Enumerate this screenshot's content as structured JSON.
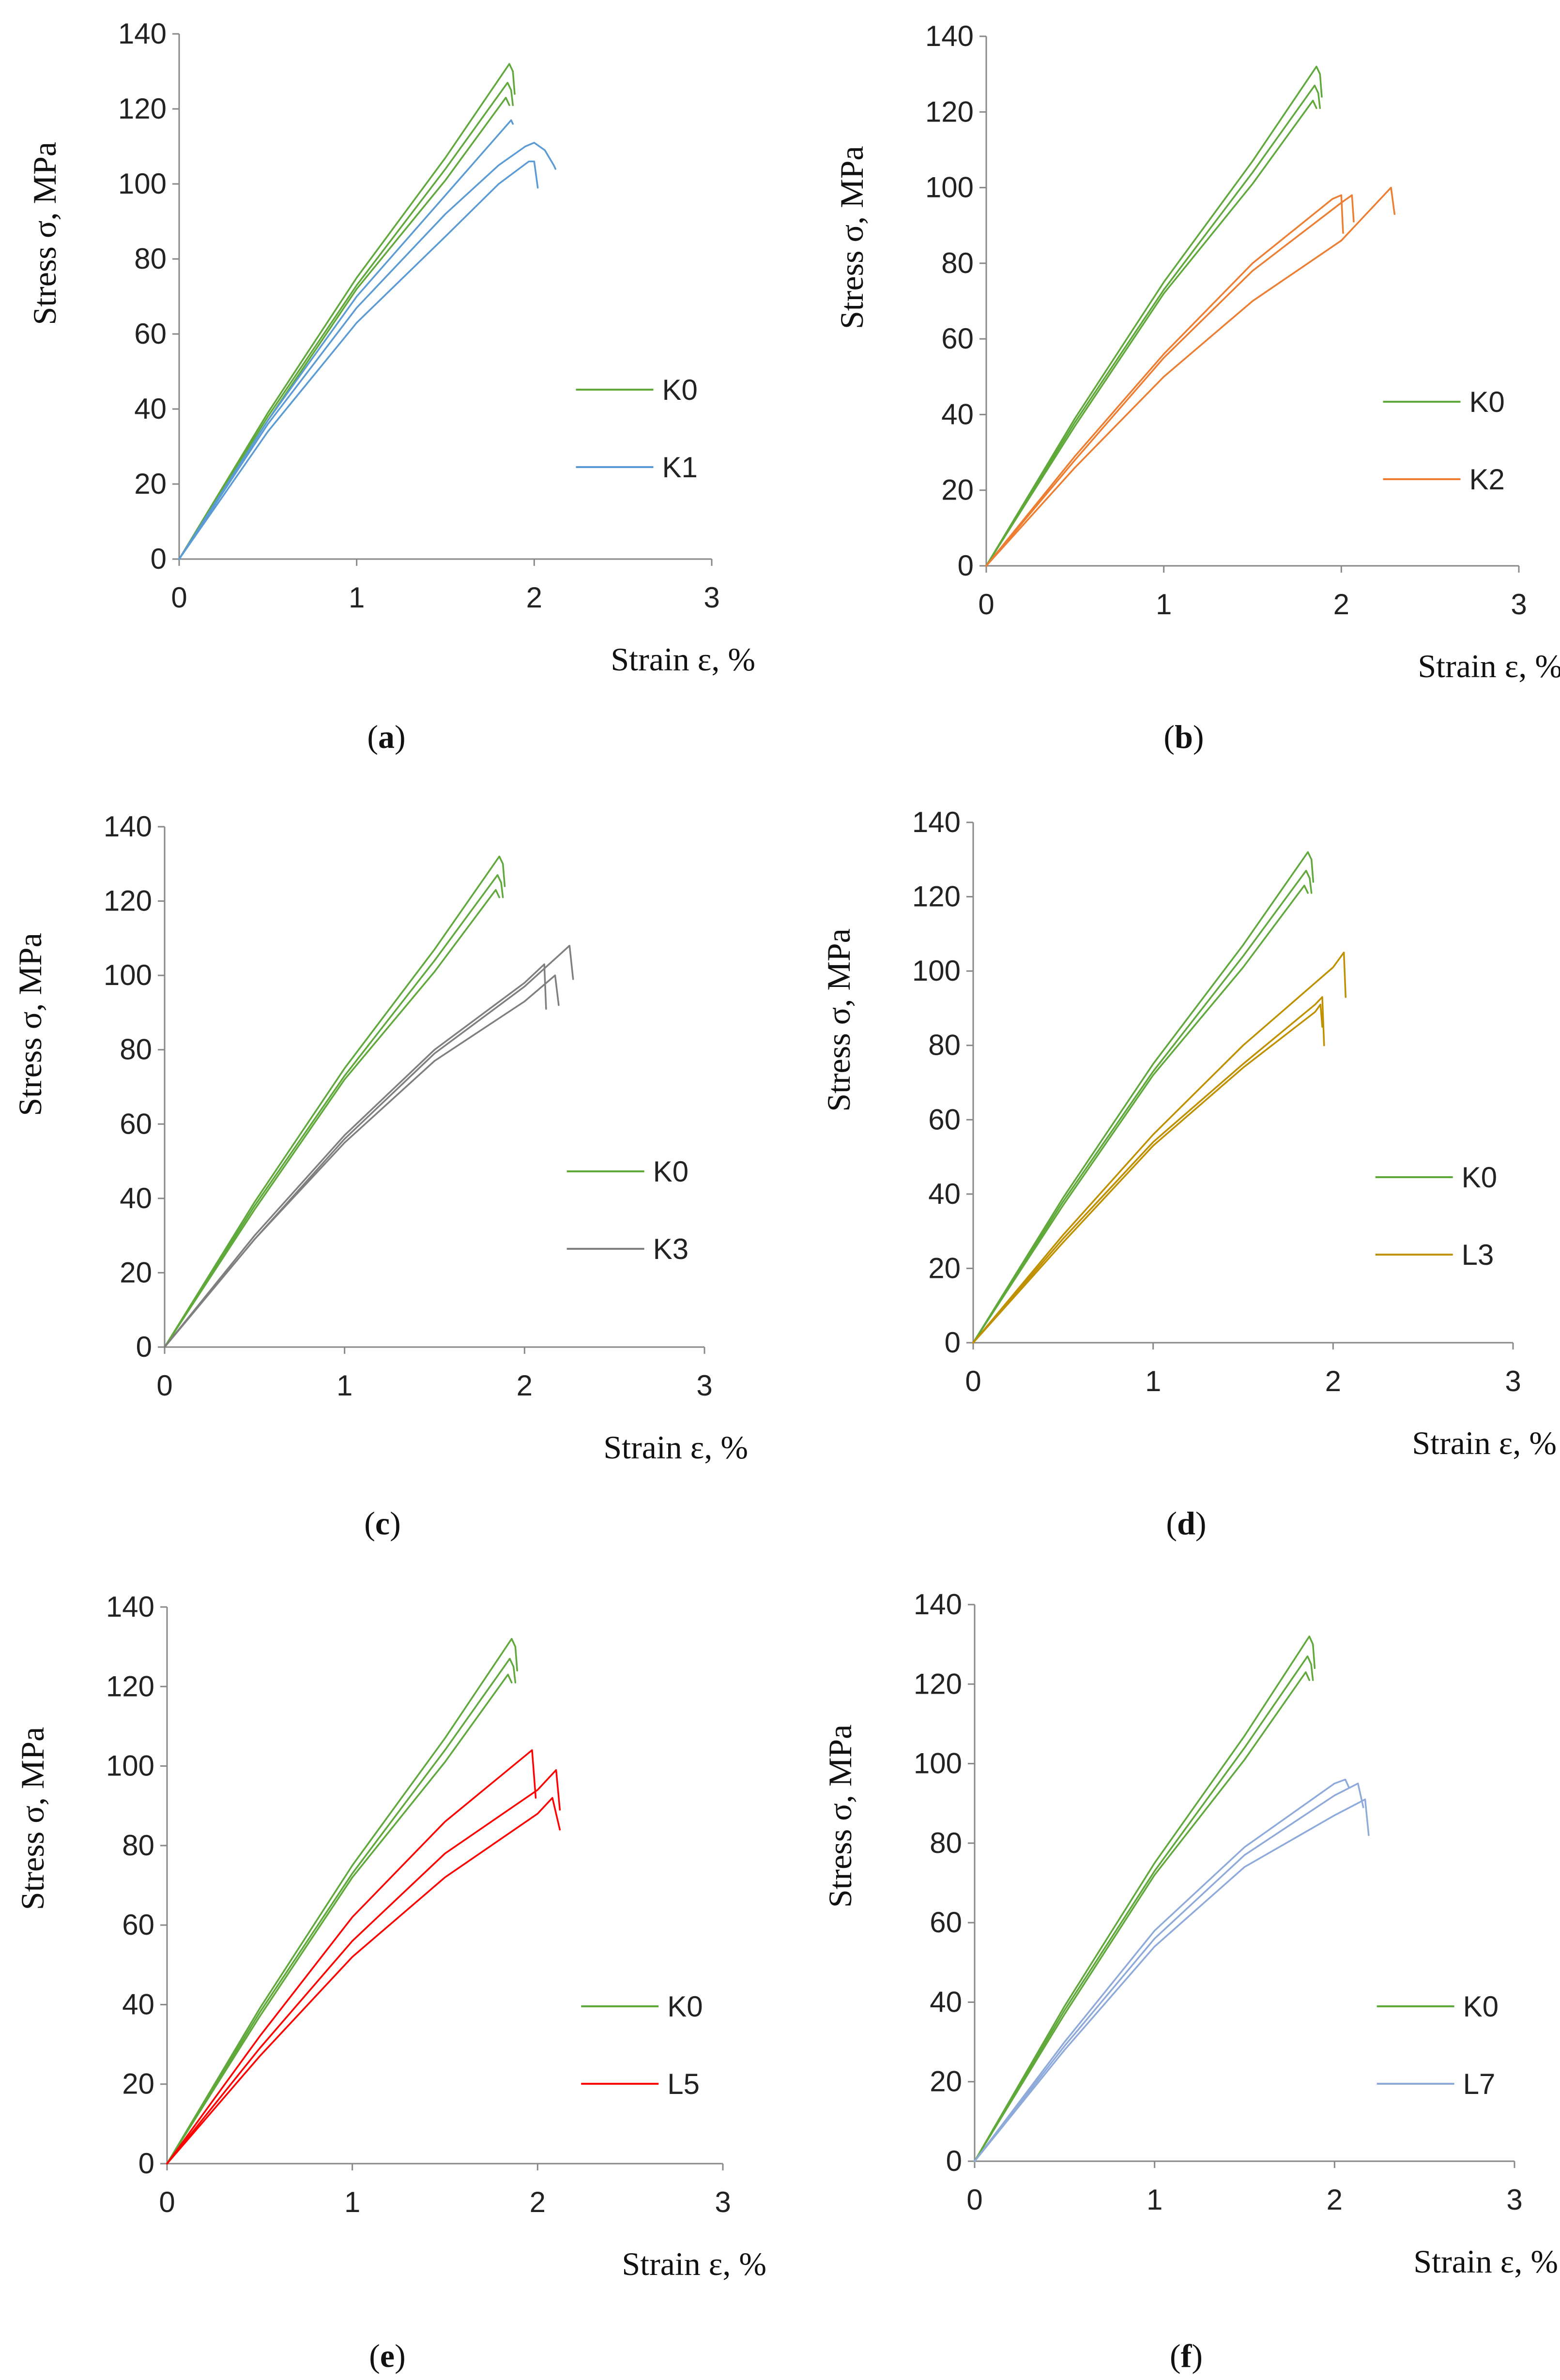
{
  "chart_data": [
    {
      "type": "line",
      "caption_letter": "a",
      "xlabel": "Strain ε, %",
      "ylabel": "Stress σ, MPa",
      "xlim": [
        0,
        3
      ],
      "ylim": [
        0,
        140
      ],
      "xticks": [
        "0",
        "1",
        "2",
        "3"
      ],
      "yticks": [
        "0",
        "20",
        "40",
        "60",
        "80",
        "100",
        "120",
        "140"
      ],
      "legend_position": "right-middle",
      "series": [
        {
          "name": "K0",
          "color": "#5fa83a",
          "show_legend": true,
          "x": [
            0,
            0.5,
            1.0,
            1.5,
            1.86,
            1.88,
            1.89
          ],
          "y": [
            0,
            39,
            75,
            107,
            132,
            130,
            124
          ]
        },
        {
          "name": "K0",
          "color": "#5fa83a",
          "show_legend": false,
          "x": [
            0,
            0.5,
            1.0,
            1.5,
            1.85,
            1.87,
            1.88
          ],
          "y": [
            0,
            38,
            73,
            104,
            127,
            125,
            121
          ]
        },
        {
          "name": "K0",
          "color": "#5fa83a",
          "show_legend": false,
          "x": [
            0,
            0.5,
            1.0,
            1.5,
            1.84,
            1.86
          ],
          "y": [
            0,
            37,
            72,
            101,
            123,
            121
          ]
        },
        {
          "name": "K1",
          "color": "#5b9bd5",
          "show_legend": true,
          "x": [
            0,
            0.5,
            1.0,
            1.5,
            1.87,
            1.88
          ],
          "y": [
            0,
            37,
            70,
            97,
            117,
            116
          ]
        },
        {
          "name": "K1",
          "color": "#5b9bd5",
          "show_legend": false,
          "x": [
            0,
            0.5,
            1.0,
            1.5,
            1.8,
            1.95,
            2.0,
            2.06,
            2.11,
            2.12
          ],
          "y": [
            0,
            36,
            67,
            92,
            105,
            110,
            111,
            109,
            105,
            104
          ]
        },
        {
          "name": "K1",
          "color": "#5b9bd5",
          "show_legend": false,
          "x": [
            0,
            0.5,
            1.0,
            1.5,
            1.8,
            1.97,
            2.0,
            2.02
          ],
          "y": [
            0,
            34,
            63,
            86,
            100,
            106,
            106,
            99
          ]
        }
      ]
    },
    {
      "type": "line",
      "caption_letter": "b",
      "xlabel": "Strain ε, %",
      "ylabel": "Stress σ, MPa",
      "xlim": [
        0,
        3
      ],
      "ylim": [
        0,
        140
      ],
      "xticks": [
        "0",
        "1",
        "2",
        "3"
      ],
      "yticks": [
        "0",
        "20",
        "40",
        "60",
        "80",
        "100",
        "120",
        "140"
      ],
      "legend_position": "right-middle",
      "series": [
        {
          "name": "K0",
          "color": "#5fa83a",
          "show_legend": true,
          "x": [
            0,
            0.5,
            1.0,
            1.5,
            1.86,
            1.88,
            1.89
          ],
          "y": [
            0,
            39,
            75,
            107,
            132,
            130,
            124
          ]
        },
        {
          "name": "K0",
          "color": "#5fa83a",
          "show_legend": false,
          "x": [
            0,
            0.5,
            1.0,
            1.5,
            1.85,
            1.87,
            1.88
          ],
          "y": [
            0,
            38,
            73,
            104,
            127,
            125,
            121
          ]
        },
        {
          "name": "K0",
          "color": "#5fa83a",
          "show_legend": false,
          "x": [
            0,
            0.5,
            1.0,
            1.5,
            1.84,
            1.86
          ],
          "y": [
            0,
            37,
            72,
            101,
            123,
            121
          ]
        },
        {
          "name": "K2",
          "color": "#ed7d31",
          "show_legend": true,
          "x": [
            0,
            0.5,
            1.0,
            1.5,
            2.0,
            2.06,
            2.07
          ],
          "y": [
            0,
            28,
            55,
            78,
            96,
            98,
            91
          ]
        },
        {
          "name": "K2",
          "color": "#ed7d31",
          "show_legend": false,
          "x": [
            0,
            0.5,
            1.0,
            1.5,
            1.95,
            2.0,
            2.01
          ],
          "y": [
            0,
            29,
            56,
            80,
            97,
            98,
            88
          ]
        },
        {
          "name": "K2",
          "color": "#ed7d31",
          "show_legend": false,
          "x": [
            0,
            0.5,
            1.0,
            1.5,
            2.0,
            2.28,
            2.3
          ],
          "y": [
            0,
            26,
            50,
            70,
            86,
            100,
            93
          ]
        }
      ]
    },
    {
      "type": "line",
      "caption_letter": "c",
      "xlabel": "Strain ε, %",
      "ylabel": "Stress σ, MPa",
      "xlim": [
        0,
        3
      ],
      "ylim": [
        0,
        140
      ],
      "xticks": [
        "0",
        "1",
        "2",
        "3"
      ],
      "yticks": [
        "0",
        "20",
        "40",
        "60",
        "80",
        "100",
        "120",
        "140"
      ],
      "legend_position": "right-middle",
      "series": [
        {
          "name": "K0",
          "color": "#5fa83a",
          "show_legend": true,
          "x": [
            0,
            0.5,
            1.0,
            1.5,
            1.86,
            1.88,
            1.89
          ],
          "y": [
            0,
            39,
            75,
            107,
            132,
            130,
            124
          ]
        },
        {
          "name": "K0",
          "color": "#5fa83a",
          "show_legend": false,
          "x": [
            0,
            0.5,
            1.0,
            1.5,
            1.85,
            1.87,
            1.88
          ],
          "y": [
            0,
            38,
            73,
            104,
            127,
            125,
            121
          ]
        },
        {
          "name": "K0",
          "color": "#5fa83a",
          "show_legend": false,
          "x": [
            0,
            0.5,
            1.0,
            1.5,
            1.84,
            1.86
          ],
          "y": [
            0,
            37,
            72,
            101,
            123,
            121
          ]
        },
        {
          "name": "K3",
          "color": "#7f7f7f",
          "show_legend": true,
          "x": [
            0,
            0.5,
            1.0,
            1.5,
            2.0,
            2.11,
            2.12
          ],
          "y": [
            0,
            30,
            57,
            80,
            98,
            103,
            91
          ]
        },
        {
          "name": "K3",
          "color": "#7f7f7f",
          "show_legend": false,
          "x": [
            0,
            0.5,
            1.0,
            1.5,
            2.0,
            2.25,
            2.27
          ],
          "y": [
            0,
            29,
            56,
            79,
            97,
            108,
            99
          ]
        },
        {
          "name": "K3",
          "color": "#7f7f7f",
          "show_legend": false,
          "x": [
            0,
            0.5,
            1.0,
            1.5,
            2.0,
            2.17,
            2.19
          ],
          "y": [
            0,
            29,
            55,
            77,
            93,
            100,
            92
          ]
        }
      ]
    },
    {
      "type": "line",
      "caption_letter": "d",
      "xlabel": "Strain ε, %",
      "ylabel": "Stress σ, MPa",
      "xlim": [
        0,
        3
      ],
      "ylim": [
        0,
        140
      ],
      "xticks": [
        "0",
        "1",
        "2",
        "3"
      ],
      "yticks": [
        "0",
        "20",
        "40",
        "60",
        "80",
        "100",
        "120",
        "140"
      ],
      "legend_position": "right-middle",
      "series": [
        {
          "name": "K0",
          "color": "#5fa83a",
          "show_legend": true,
          "x": [
            0,
            0.5,
            1.0,
            1.5,
            1.86,
            1.88,
            1.89
          ],
          "y": [
            0,
            39,
            75,
            107,
            132,
            130,
            124
          ]
        },
        {
          "name": "K0",
          "color": "#5fa83a",
          "show_legend": false,
          "x": [
            0,
            0.5,
            1.0,
            1.5,
            1.85,
            1.87,
            1.88
          ],
          "y": [
            0,
            38,
            73,
            104,
            127,
            125,
            121
          ]
        },
        {
          "name": "K0",
          "color": "#5fa83a",
          "show_legend": false,
          "x": [
            0,
            0.5,
            1.0,
            1.5,
            1.84,
            1.86
          ],
          "y": [
            0,
            37,
            72,
            101,
            123,
            121
          ]
        },
        {
          "name": "L3",
          "color": "#bf9000",
          "show_legend": true,
          "x": [
            0,
            0.5,
            1.0,
            1.5,
            2.0,
            2.06,
            2.07
          ],
          "y": [
            0,
            29,
            56,
            80,
            101,
            105,
            93
          ]
        },
        {
          "name": "L3",
          "color": "#bf9000",
          "show_legend": false,
          "x": [
            0,
            0.5,
            1.0,
            1.5,
            1.9,
            1.94,
            1.95
          ],
          "y": [
            0,
            28,
            54,
            75,
            91,
            93,
            80
          ]
        },
        {
          "name": "L3",
          "color": "#bf9000",
          "show_legend": false,
          "x": [
            0,
            0.5,
            1.0,
            1.5,
            1.9,
            1.93,
            1.94
          ],
          "y": [
            0,
            27,
            53,
            74,
            89,
            91,
            85
          ]
        }
      ]
    },
    {
      "type": "line",
      "caption_letter": "e",
      "xlabel": "Strain ε, %",
      "ylabel": "Stress σ, MPa",
      "xlim": [
        0,
        3
      ],
      "ylim": [
        0,
        140
      ],
      "xticks": [
        "0",
        "1",
        "2",
        "3"
      ],
      "yticks": [
        "0",
        "20",
        "40",
        "60",
        "80",
        "100",
        "120",
        "140"
      ],
      "legend_position": "right-middle",
      "series": [
        {
          "name": "K0",
          "color": "#5fa83a",
          "show_legend": true,
          "x": [
            0,
            0.5,
            1.0,
            1.5,
            1.86,
            1.88,
            1.89
          ],
          "y": [
            0,
            39,
            75,
            107,
            132,
            130,
            124
          ]
        },
        {
          "name": "K0",
          "color": "#5fa83a",
          "show_legend": false,
          "x": [
            0,
            0.5,
            1.0,
            1.5,
            1.85,
            1.87,
            1.88
          ],
          "y": [
            0,
            38,
            73,
            104,
            127,
            125,
            121
          ]
        },
        {
          "name": "K0",
          "color": "#5fa83a",
          "show_legend": false,
          "x": [
            0,
            0.5,
            1.0,
            1.5,
            1.84,
            1.86
          ],
          "y": [
            0,
            37,
            72,
            101,
            123,
            121
          ]
        },
        {
          "name": "L5",
          "color": "#ff0000",
          "show_legend": true,
          "x": [
            0,
            0.5,
            1.0,
            1.5,
            1.97,
            1.99
          ],
          "y": [
            0,
            32,
            62,
            86,
            104,
            92
          ]
        },
        {
          "name": "L5",
          "color": "#ff0000",
          "show_legend": false,
          "x": [
            0,
            0.5,
            1.0,
            1.5,
            2.0,
            2.1,
            2.12
          ],
          "y": [
            0,
            29,
            56,
            78,
            94,
            99,
            89
          ]
        },
        {
          "name": "L5",
          "color": "#ff0000",
          "show_legend": false,
          "x": [
            0,
            0.5,
            1.0,
            1.5,
            2.0,
            2.08,
            2.12
          ],
          "y": [
            0,
            27,
            52,
            72,
            88,
            92,
            84
          ]
        }
      ]
    },
    {
      "type": "line",
      "caption_letter": "f",
      "xlabel": "Strain ε, %",
      "ylabel": "Stress σ, MPa",
      "xlim": [
        0,
        3
      ],
      "ylim": [
        0,
        140
      ],
      "xticks": [
        "0",
        "1",
        "2",
        "3"
      ],
      "yticks": [
        "0",
        "20",
        "40",
        "60",
        "80",
        "100",
        "120",
        "140"
      ],
      "legend_position": "right-middle",
      "series": [
        {
          "name": "K0",
          "color": "#5fa83a",
          "show_legend": true,
          "x": [
            0,
            0.5,
            1.0,
            1.5,
            1.86,
            1.88,
            1.89
          ],
          "y": [
            0,
            39,
            75,
            107,
            132,
            130,
            124
          ]
        },
        {
          "name": "K0",
          "color": "#5fa83a",
          "show_legend": false,
          "x": [
            0,
            0.5,
            1.0,
            1.5,
            1.85,
            1.87,
            1.88
          ],
          "y": [
            0,
            38,
            73,
            104,
            127,
            125,
            121
          ]
        },
        {
          "name": "K0",
          "color": "#5fa83a",
          "show_legend": false,
          "x": [
            0,
            0.5,
            1.0,
            1.5,
            1.84,
            1.86
          ],
          "y": [
            0,
            37,
            72,
            101,
            123,
            121
          ]
        },
        {
          "name": "L7",
          "color": "#8eaadb",
          "show_legend": true,
          "x": [
            0,
            0.5,
            1.0,
            1.5,
            2.0,
            2.06,
            2.08
          ],
          "y": [
            0,
            30,
            58,
            79,
            95,
            96,
            94
          ]
        },
        {
          "name": "L7",
          "color": "#8eaadb",
          "show_legend": false,
          "x": [
            0,
            0.5,
            1.0,
            1.5,
            2.0,
            2.13,
            2.16
          ],
          "y": [
            0,
            29,
            56,
            77,
            92,
            95,
            89
          ]
        },
        {
          "name": "L7",
          "color": "#8eaadb",
          "show_legend": false,
          "x": [
            0,
            0.5,
            1.0,
            1.5,
            2.0,
            2.17,
            2.19
          ],
          "y": [
            0,
            28,
            54,
            74,
            87,
            91,
            82
          ]
        }
      ]
    }
  ]
}
